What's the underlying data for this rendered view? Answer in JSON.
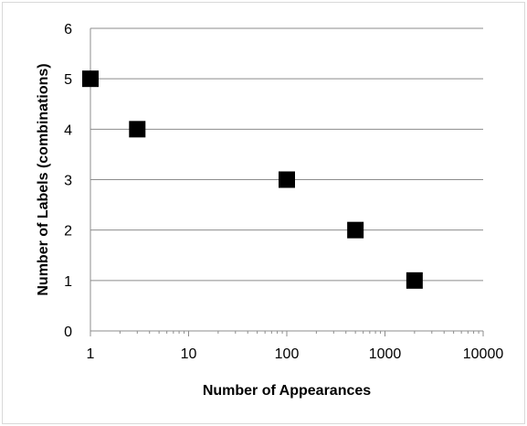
{
  "chart_data": {
    "type": "scatter",
    "title": "",
    "xlabel": "Number of Appearances",
    "ylabel": "Number of Labels (combinations)",
    "x_scale": "log",
    "xlim": [
      1,
      10000
    ],
    "ylim": [
      0,
      6
    ],
    "x_ticks": [
      "1",
      "10",
      "100",
      "1000",
      "10000"
    ],
    "y_ticks": [
      "0",
      "1",
      "2",
      "3",
      "4",
      "5",
      "6"
    ],
    "grid": "horizontal",
    "legend": "none",
    "marker": "square",
    "marker_color": "#000000",
    "points": [
      {
        "x": 1,
        "y": 5
      },
      {
        "x": 3,
        "y": 4
      },
      {
        "x": 100,
        "y": 3
      },
      {
        "x": 500,
        "y": 2
      },
      {
        "x": 2000,
        "y": 1
      }
    ]
  }
}
